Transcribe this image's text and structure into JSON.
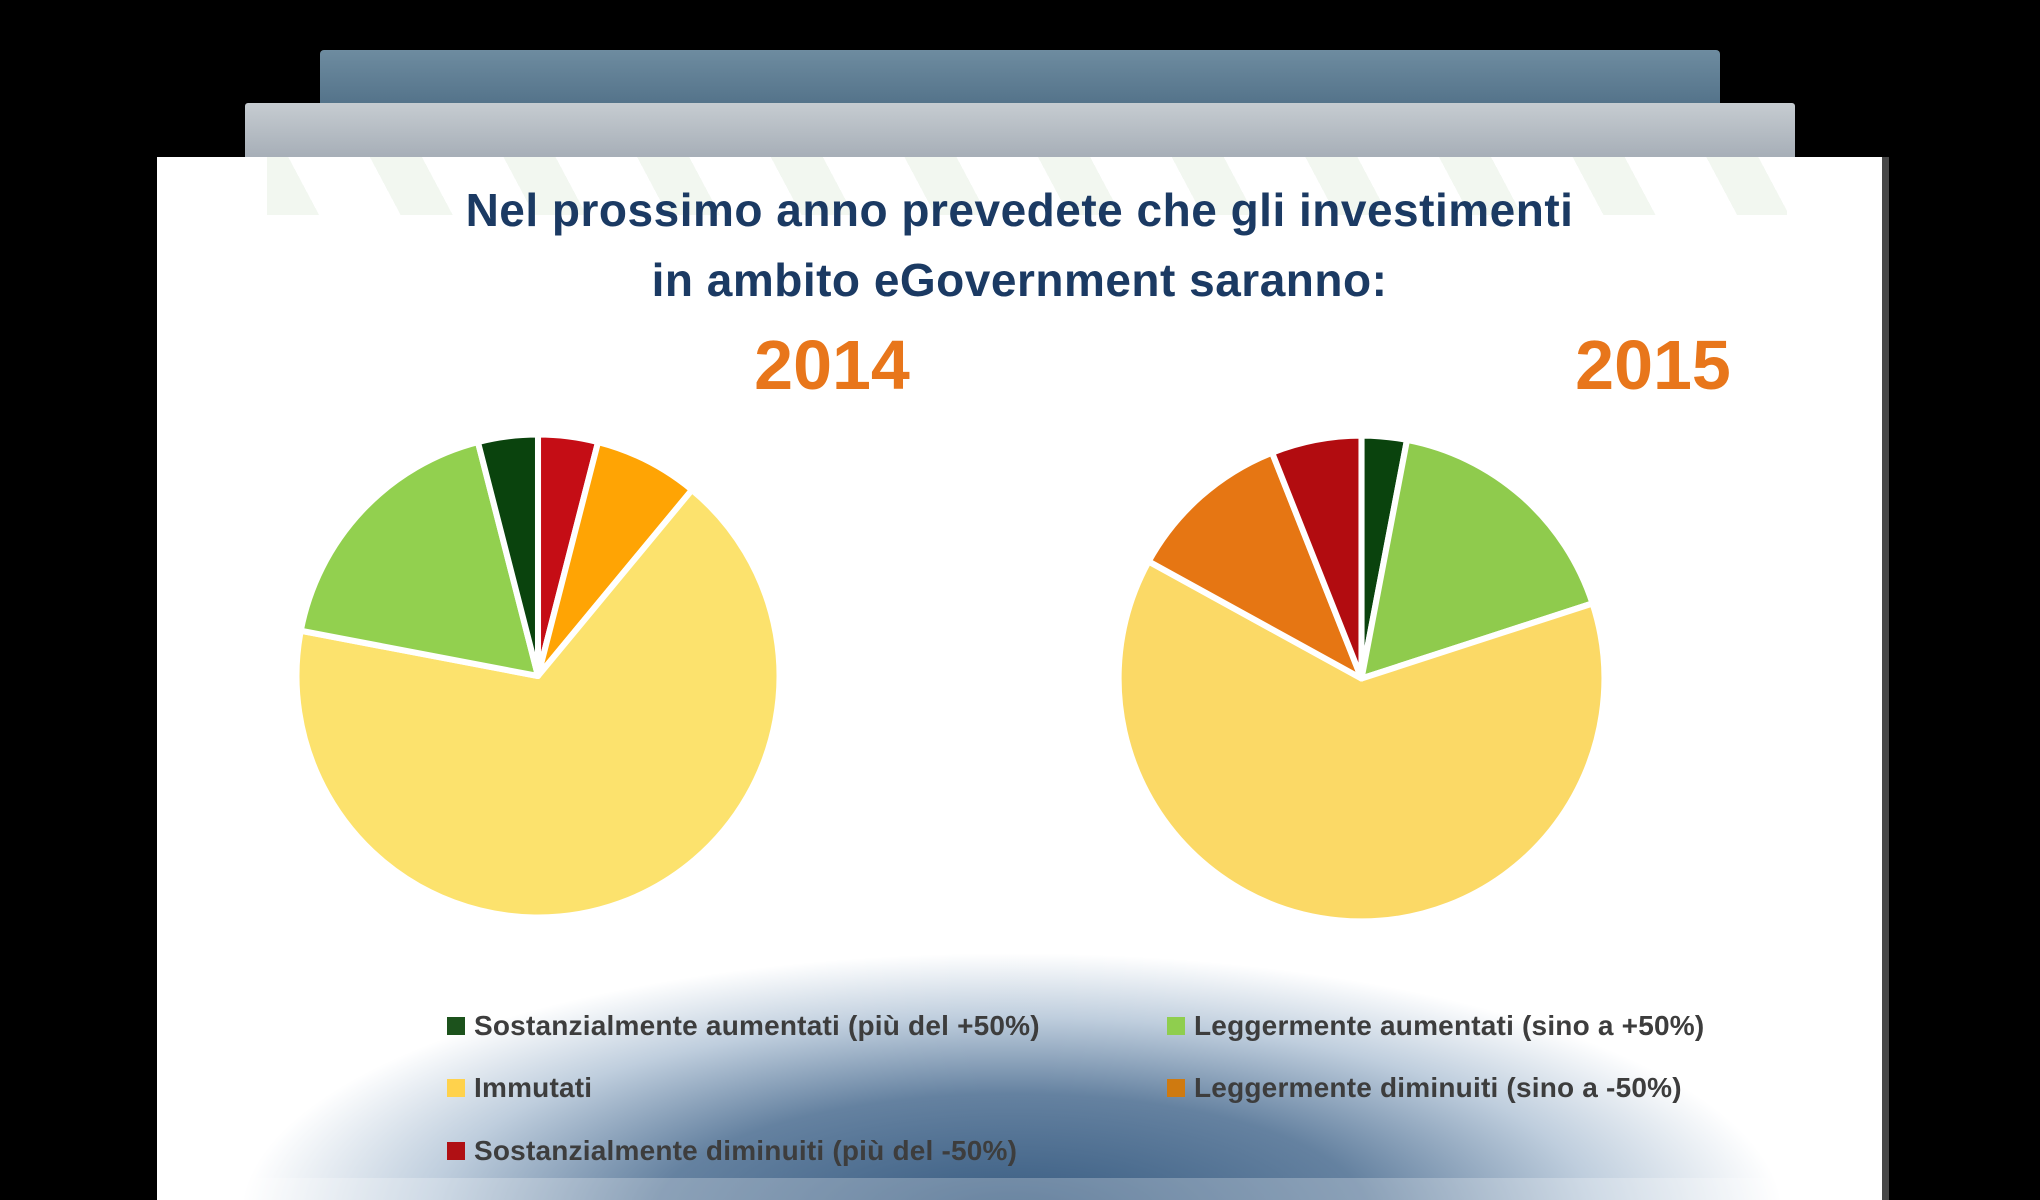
{
  "window": {
    "background_color": "#000000"
  },
  "header_bars": {
    "top_bar_color": "#5D7C91",
    "middle_bar_color": "#AEB6BE"
  },
  "slide": {
    "background_color": "#FFFFFF",
    "title_line1": "Nel prossimo anno prevedete che gli investimenti",
    "title_line2": "in ambito eGovernment saranno:",
    "title_color": "#1B3A63",
    "year_label_color": "#E8761B"
  },
  "chart_data": [
    {
      "type": "pie",
      "title": "2014",
      "start_angle_deg": 0,
      "direction": "clockwise",
      "slices": [
        {
          "label": "Sostanzialmente diminuiti (più del -50%)",
          "value": 4,
          "color": "#C50D15"
        },
        {
          "label": "Leggermente diminuiti (sino a -50%)",
          "value": 7,
          "color": "#FFA404"
        },
        {
          "label": "Immutati",
          "value": 67,
          "color": "#FCE26D"
        },
        {
          "label": "Leggermente aumentati (sino a +50%)",
          "value": 18,
          "color": "#92D04F"
        },
        {
          "label": "Sostanzialmente aumentati (più del +50%)",
          "value": 4,
          "color": "#0A430D"
        }
      ]
    },
    {
      "type": "pie",
      "title": "2015",
      "start_angle_deg": 0,
      "direction": "clockwise",
      "slices": [
        {
          "label": "Sostanzialmente aumentati (più del +50%)",
          "value": 3,
          "color": "#0A430D"
        },
        {
          "label": "Leggermente aumentati (sino a +50%)",
          "value": 17,
          "color": "#8FCB4D"
        },
        {
          "label": "Immutati",
          "value": 63,
          "color": "#FBD966"
        },
        {
          "label": "Leggermente diminuiti (sino a -50%)",
          "value": 11,
          "color": "#E67613"
        },
        {
          "label": "Sostanzialmente diminuiti (più del -50%)",
          "value": 6,
          "color": "#B20C10"
        }
      ]
    }
  ],
  "legend": {
    "text_color": "#3D3D3D",
    "items": [
      {
        "label": "Sostanzialmente aumentati (più del +50%)",
        "color": "#1C521C"
      },
      {
        "label": "Leggermente aumentati (sino a +50%)",
        "color": "#8FCE4E"
      },
      {
        "label": "Immutati",
        "color": "#FFD24C"
      },
      {
        "label": "Leggermente diminuiti (sino a -50%)",
        "color": "#CF7A10"
      },
      {
        "label": "Sostanzialmente diminuiti (più del -50%)",
        "color": "#B01014"
      }
    ]
  }
}
